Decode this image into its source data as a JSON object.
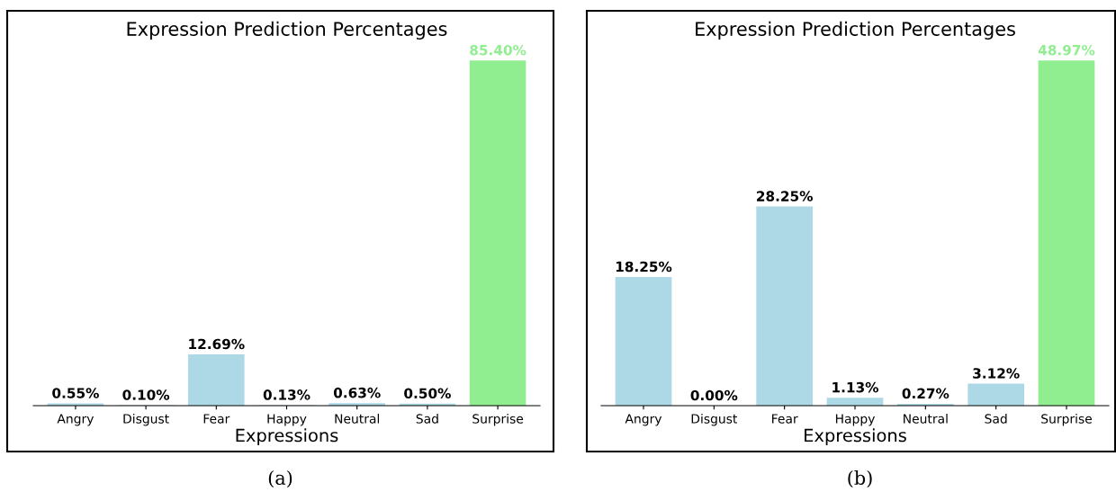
{
  "chart_data": [
    {
      "type": "bar",
      "title": "Expression Prediction Percentages",
      "xlabel": "Expressions",
      "categories": [
        "Angry",
        "Disgust",
        "Fear",
        "Happy",
        "Neutral",
        "Sad",
        "Surprise"
      ],
      "values": [
        0.55,
        0.1,
        12.69,
        0.13,
        0.63,
        0.5,
        85.4
      ],
      "colors": [
        "#add8e6",
        "#add8e6",
        "#add8e6",
        "#add8e6",
        "#add8e6",
        "#add8e6",
        "#90ee90"
      ],
      "value_labels": [
        "0.55%",
        "0.10%",
        "12.69%",
        "0.13%",
        "0.63%",
        "0.50%",
        "85.40%"
      ],
      "annotations": [
        "(a)"
      ]
    },
    {
      "type": "bar",
      "title": "Expression Prediction Percentages",
      "xlabel": "Expressions",
      "categories": [
        "Angry",
        "Disgust",
        "Fear",
        "Happy",
        "Neutral",
        "Sad",
        "Surprise"
      ],
      "values": [
        18.25,
        0.0,
        28.25,
        1.13,
        0.27,
        3.12,
        48.97
      ],
      "colors": [
        "#add8e6",
        "#add8e6",
        "#add8e6",
        "#add8e6",
        "#add8e6",
        "#add8e6",
        "#90ee90"
      ],
      "value_labels": [
        "18.25%",
        "0.00%",
        "28.25%",
        "1.13%",
        "0.27%",
        "3.12%",
        "48.97%"
      ],
      "annotations": [
        "(b)"
      ]
    }
  ]
}
